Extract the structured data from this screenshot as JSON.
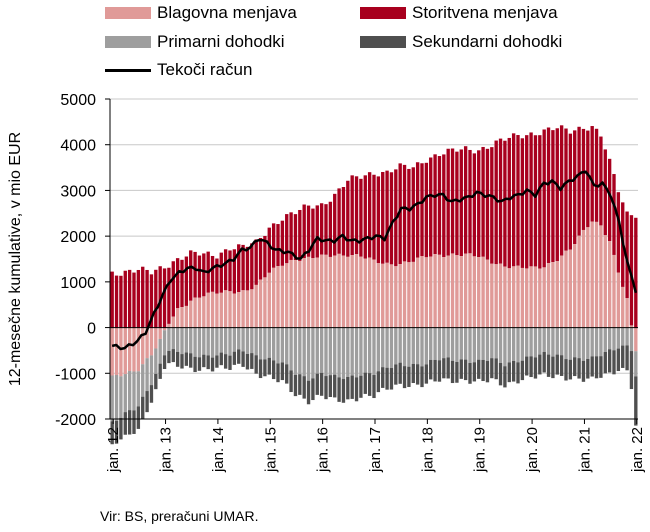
{
  "chart_data": {
    "type": "bar",
    "ylabel": "12-mesečne kumulative, v mio EUR",
    "ylim": [
      -2000,
      5000
    ],
    "yticks": [
      5000,
      4000,
      3000,
      2000,
      1000,
      0,
      -1000,
      -2000
    ],
    "ytick_labels": [
      "5000",
      "4000",
      "3000",
      "2000",
      "1000",
      "0",
      "-1000",
      "-2000"
    ],
    "xtick_labels": [
      "jan. 12",
      "jan. 13",
      "jan. 14",
      "jan. 15",
      "jan. 16",
      "jan. 17",
      "jan. 18",
      "jan. 19",
      "jan. 20",
      "jan. 21",
      "jan. 22"
    ],
    "grid": "horizontal",
    "legend_placement": "top",
    "source": "Vir: BS, preračuni UMAR.",
    "colors": {
      "blagovna": "#e09a98",
      "storitvena": "#a8001e",
      "primarni": "#9e9e9e",
      "sekundarni": "#4f4f4f",
      "tekoci": "#000000"
    },
    "series": [
      {
        "name": "Blagovna menjava",
        "key": "blagovna",
        "keypoints": [
          [
            0,
            -1100
          ],
          [
            6,
            -900
          ],
          [
            9,
            -600
          ],
          [
            11,
            -300
          ],
          [
            13,
            100
          ],
          [
            15,
            400
          ],
          [
            18,
            600
          ],
          [
            21,
            700
          ],
          [
            24,
            750
          ],
          [
            27,
            800
          ],
          [
            30,
            800
          ],
          [
            33,
            900
          ],
          [
            36,
            1200
          ],
          [
            39,
            1400
          ],
          [
            42,
            1500
          ],
          [
            45,
            1500
          ],
          [
            48,
            1550
          ],
          [
            51,
            1600
          ],
          [
            54,
            1600
          ],
          [
            57,
            1550
          ],
          [
            60,
            1450
          ],
          [
            63,
            1400
          ],
          [
            66,
            1400
          ],
          [
            69,
            1450
          ],
          [
            72,
            1550
          ],
          [
            75,
            1600
          ],
          [
            78,
            1600
          ],
          [
            81,
            1580
          ],
          [
            84,
            1550
          ],
          [
            87,
            1450
          ],
          [
            90,
            1350
          ],
          [
            93,
            1300
          ],
          [
            96,
            1300
          ],
          [
            99,
            1350
          ],
          [
            102,
            1500
          ],
          [
            105,
            1700
          ],
          [
            108,
            2100
          ],
          [
            110,
            2350
          ],
          [
            112,
            2250
          ],
          [
            114,
            1900
          ],
          [
            116,
            1200
          ],
          [
            118,
            600
          ],
          [
            119,
            0
          ],
          [
            120,
            -500
          ]
        ]
      },
      {
        "name": "Storitvena menjava",
        "key": "storitvena",
        "keypoints": [
          [
            0,
            1200
          ],
          [
            6,
            1250
          ],
          [
            9,
            1200
          ],
          [
            12,
            1350
          ],
          [
            15,
            1500
          ],
          [
            18,
            1600
          ],
          [
            21,
            1600
          ],
          [
            24,
            1600
          ],
          [
            27,
            1750
          ],
          [
            30,
            1750
          ],
          [
            33,
            1850
          ],
          [
            36,
            2200
          ],
          [
            39,
            2400
          ],
          [
            42,
            2500
          ],
          [
            45,
            2650
          ],
          [
            48,
            2700
          ],
          [
            51,
            2900
          ],
          [
            54,
            3200
          ],
          [
            57,
            3300
          ],
          [
            60,
            3400
          ],
          [
            63,
            3400
          ],
          [
            66,
            3500
          ],
          [
            69,
            3500
          ],
          [
            72,
            3700
          ],
          [
            75,
            3800
          ],
          [
            78,
            3850
          ],
          [
            81,
            3900
          ],
          [
            84,
            3900
          ],
          [
            87,
            4000
          ],
          [
            90,
            4100
          ],
          [
            93,
            4200
          ],
          [
            96,
            4250
          ],
          [
            99,
            4300
          ],
          [
            102,
            4350
          ],
          [
            105,
            4300
          ],
          [
            108,
            4400
          ],
          [
            110,
            4400
          ],
          [
            112,
            4200
          ],
          [
            113,
            3900
          ],
          [
            114,
            3600
          ],
          [
            116,
            3000
          ],
          [
            118,
            2500
          ],
          [
            120,
            2500
          ]
        ]
      },
      {
        "name": "Primarni dohodki",
        "key": "primarni",
        "keypoints": [
          [
            0,
            -1000
          ],
          [
            6,
            -800
          ],
          [
            9,
            -600
          ],
          [
            12,
            -500
          ],
          [
            15,
            -550
          ],
          [
            18,
            -600
          ],
          [
            24,
            -600
          ],
          [
            27,
            -600
          ],
          [
            30,
            -500
          ],
          [
            33,
            -600
          ],
          [
            36,
            -700
          ],
          [
            39,
            -800
          ],
          [
            42,
            -1000
          ],
          [
            45,
            -1100
          ],
          [
            48,
            -1000
          ],
          [
            51,
            -1100
          ],
          [
            54,
            -1100
          ],
          [
            57,
            -1000
          ],
          [
            60,
            -1000
          ],
          [
            63,
            -900
          ],
          [
            66,
            -800
          ],
          [
            69,
            -800
          ],
          [
            72,
            -800
          ],
          [
            75,
            -700
          ],
          [
            78,
            -700
          ],
          [
            81,
            -700
          ],
          [
            84,
            -750
          ],
          [
            87,
            -700
          ],
          [
            90,
            -800
          ],
          [
            93,
            -700
          ],
          [
            96,
            -650
          ],
          [
            99,
            -600
          ],
          [
            102,
            -600
          ],
          [
            105,
            -650
          ],
          [
            108,
            -700
          ],
          [
            110,
            -700
          ],
          [
            112,
            -600
          ],
          [
            114,
            -500
          ],
          [
            116,
            -400
          ],
          [
            118,
            -400
          ],
          [
            120,
            -550
          ]
        ]
      },
      {
        "name": "Sekundarni dohodki",
        "key": "sekundarni",
        "keypoints": [
          [
            0,
            -500
          ],
          [
            6,
            -500
          ],
          [
            9,
            -400
          ],
          [
            12,
            -300
          ],
          [
            15,
            -300
          ],
          [
            18,
            -300
          ],
          [
            24,
            -300
          ],
          [
            27,
            -300
          ],
          [
            30,
            -300
          ],
          [
            33,
            -400
          ],
          [
            36,
            -400
          ],
          [
            39,
            -400
          ],
          [
            42,
            -450
          ],
          [
            45,
            -500
          ],
          [
            48,
            -500
          ],
          [
            51,
            -500
          ],
          [
            54,
            -500
          ],
          [
            57,
            -500
          ],
          [
            60,
            -500
          ],
          [
            63,
            -450
          ],
          [
            66,
            -450
          ],
          [
            69,
            -450
          ],
          [
            72,
            -450
          ],
          [
            75,
            -450
          ],
          [
            78,
            -450
          ],
          [
            81,
            -450
          ],
          [
            84,
            -450
          ],
          [
            87,
            -450
          ],
          [
            90,
            -450
          ],
          [
            93,
            -450
          ],
          [
            96,
            -450
          ],
          [
            99,
            -450
          ],
          [
            102,
            -450
          ],
          [
            105,
            -450
          ],
          [
            108,
            -450
          ],
          [
            110,
            -450
          ],
          [
            112,
            -450
          ],
          [
            114,
            -500
          ],
          [
            116,
            -500
          ],
          [
            118,
            -550
          ],
          [
            120,
            -1100
          ]
        ]
      }
    ],
    "line_series": {
      "name": "Tekoči račun",
      "key": "tekoci",
      "keypoints": [
        [
          0,
          -400
        ],
        [
          3,
          -450
        ],
        [
          6,
          -300
        ],
        [
          8,
          -100
        ],
        [
          10,
          300
        ],
        [
          12,
          700
        ],
        [
          14,
          1050
        ],
        [
          16,
          1200
        ],
        [
          18,
          1300
        ],
        [
          20,
          1300
        ],
        [
          22,
          1200
        ],
        [
          24,
          1300
        ],
        [
          27,
          1400
        ],
        [
          29,
          1500
        ],
        [
          31,
          1700
        ],
        [
          33,
          1750
        ],
        [
          35,
          1950
        ],
        [
          37,
          1850
        ],
        [
          39,
          1700
        ],
        [
          42,
          1650
        ],
        [
          45,
          1500
        ],
        [
          47,
          1700
        ],
        [
          49,
          1950
        ],
        [
          51,
          1900
        ],
        [
          53,
          1900
        ],
        [
          55,
          2000
        ],
        [
          57,
          1900
        ],
        [
          59,
          1900
        ],
        [
          61,
          1950
        ],
        [
          63,
          2000
        ],
        [
          65,
          1950
        ],
        [
          67,
          2300
        ],
        [
          69,
          2600
        ],
        [
          71,
          2600
        ],
        [
          73,
          2700
        ],
        [
          75,
          2850
        ],
        [
          77,
          2900
        ],
        [
          79,
          2900
        ],
        [
          81,
          2750
        ],
        [
          83,
          2800
        ],
        [
          85,
          2850
        ],
        [
          87,
          2950
        ],
        [
          89,
          2900
        ],
        [
          91,
          2850
        ],
        [
          93,
          2750
        ],
        [
          95,
          2850
        ],
        [
          97,
          2900
        ],
        [
          99,
          3000
        ],
        [
          101,
          2900
        ],
        [
          103,
          3150
        ],
        [
          105,
          3200
        ],
        [
          107,
          3050
        ],
        [
          109,
          3200
        ],
        [
          111,
          3300
        ],
        [
          113,
          3450
        ],
        [
          115,
          3100
        ],
        [
          117,
          3150
        ],
        [
          119,
          2900
        ],
        [
          121,
          2300
        ],
        [
          123,
          1400
        ],
        [
          125,
          800
        ]
      ]
    }
  },
  "legend": [
    {
      "label": "Blagovna menjava",
      "key": "blagovna",
      "kind": "bar"
    },
    {
      "label": "Storitvena menjava",
      "key": "storitvena",
      "kind": "bar"
    },
    {
      "label": "Primarni dohodki",
      "key": "primarni",
      "kind": "bar"
    },
    {
      "label": "Sekundarni dohodki",
      "key": "sekundarni",
      "kind": "bar"
    },
    {
      "label": "Tekoči račun",
      "key": "tekoci",
      "kind": "line"
    }
  ]
}
